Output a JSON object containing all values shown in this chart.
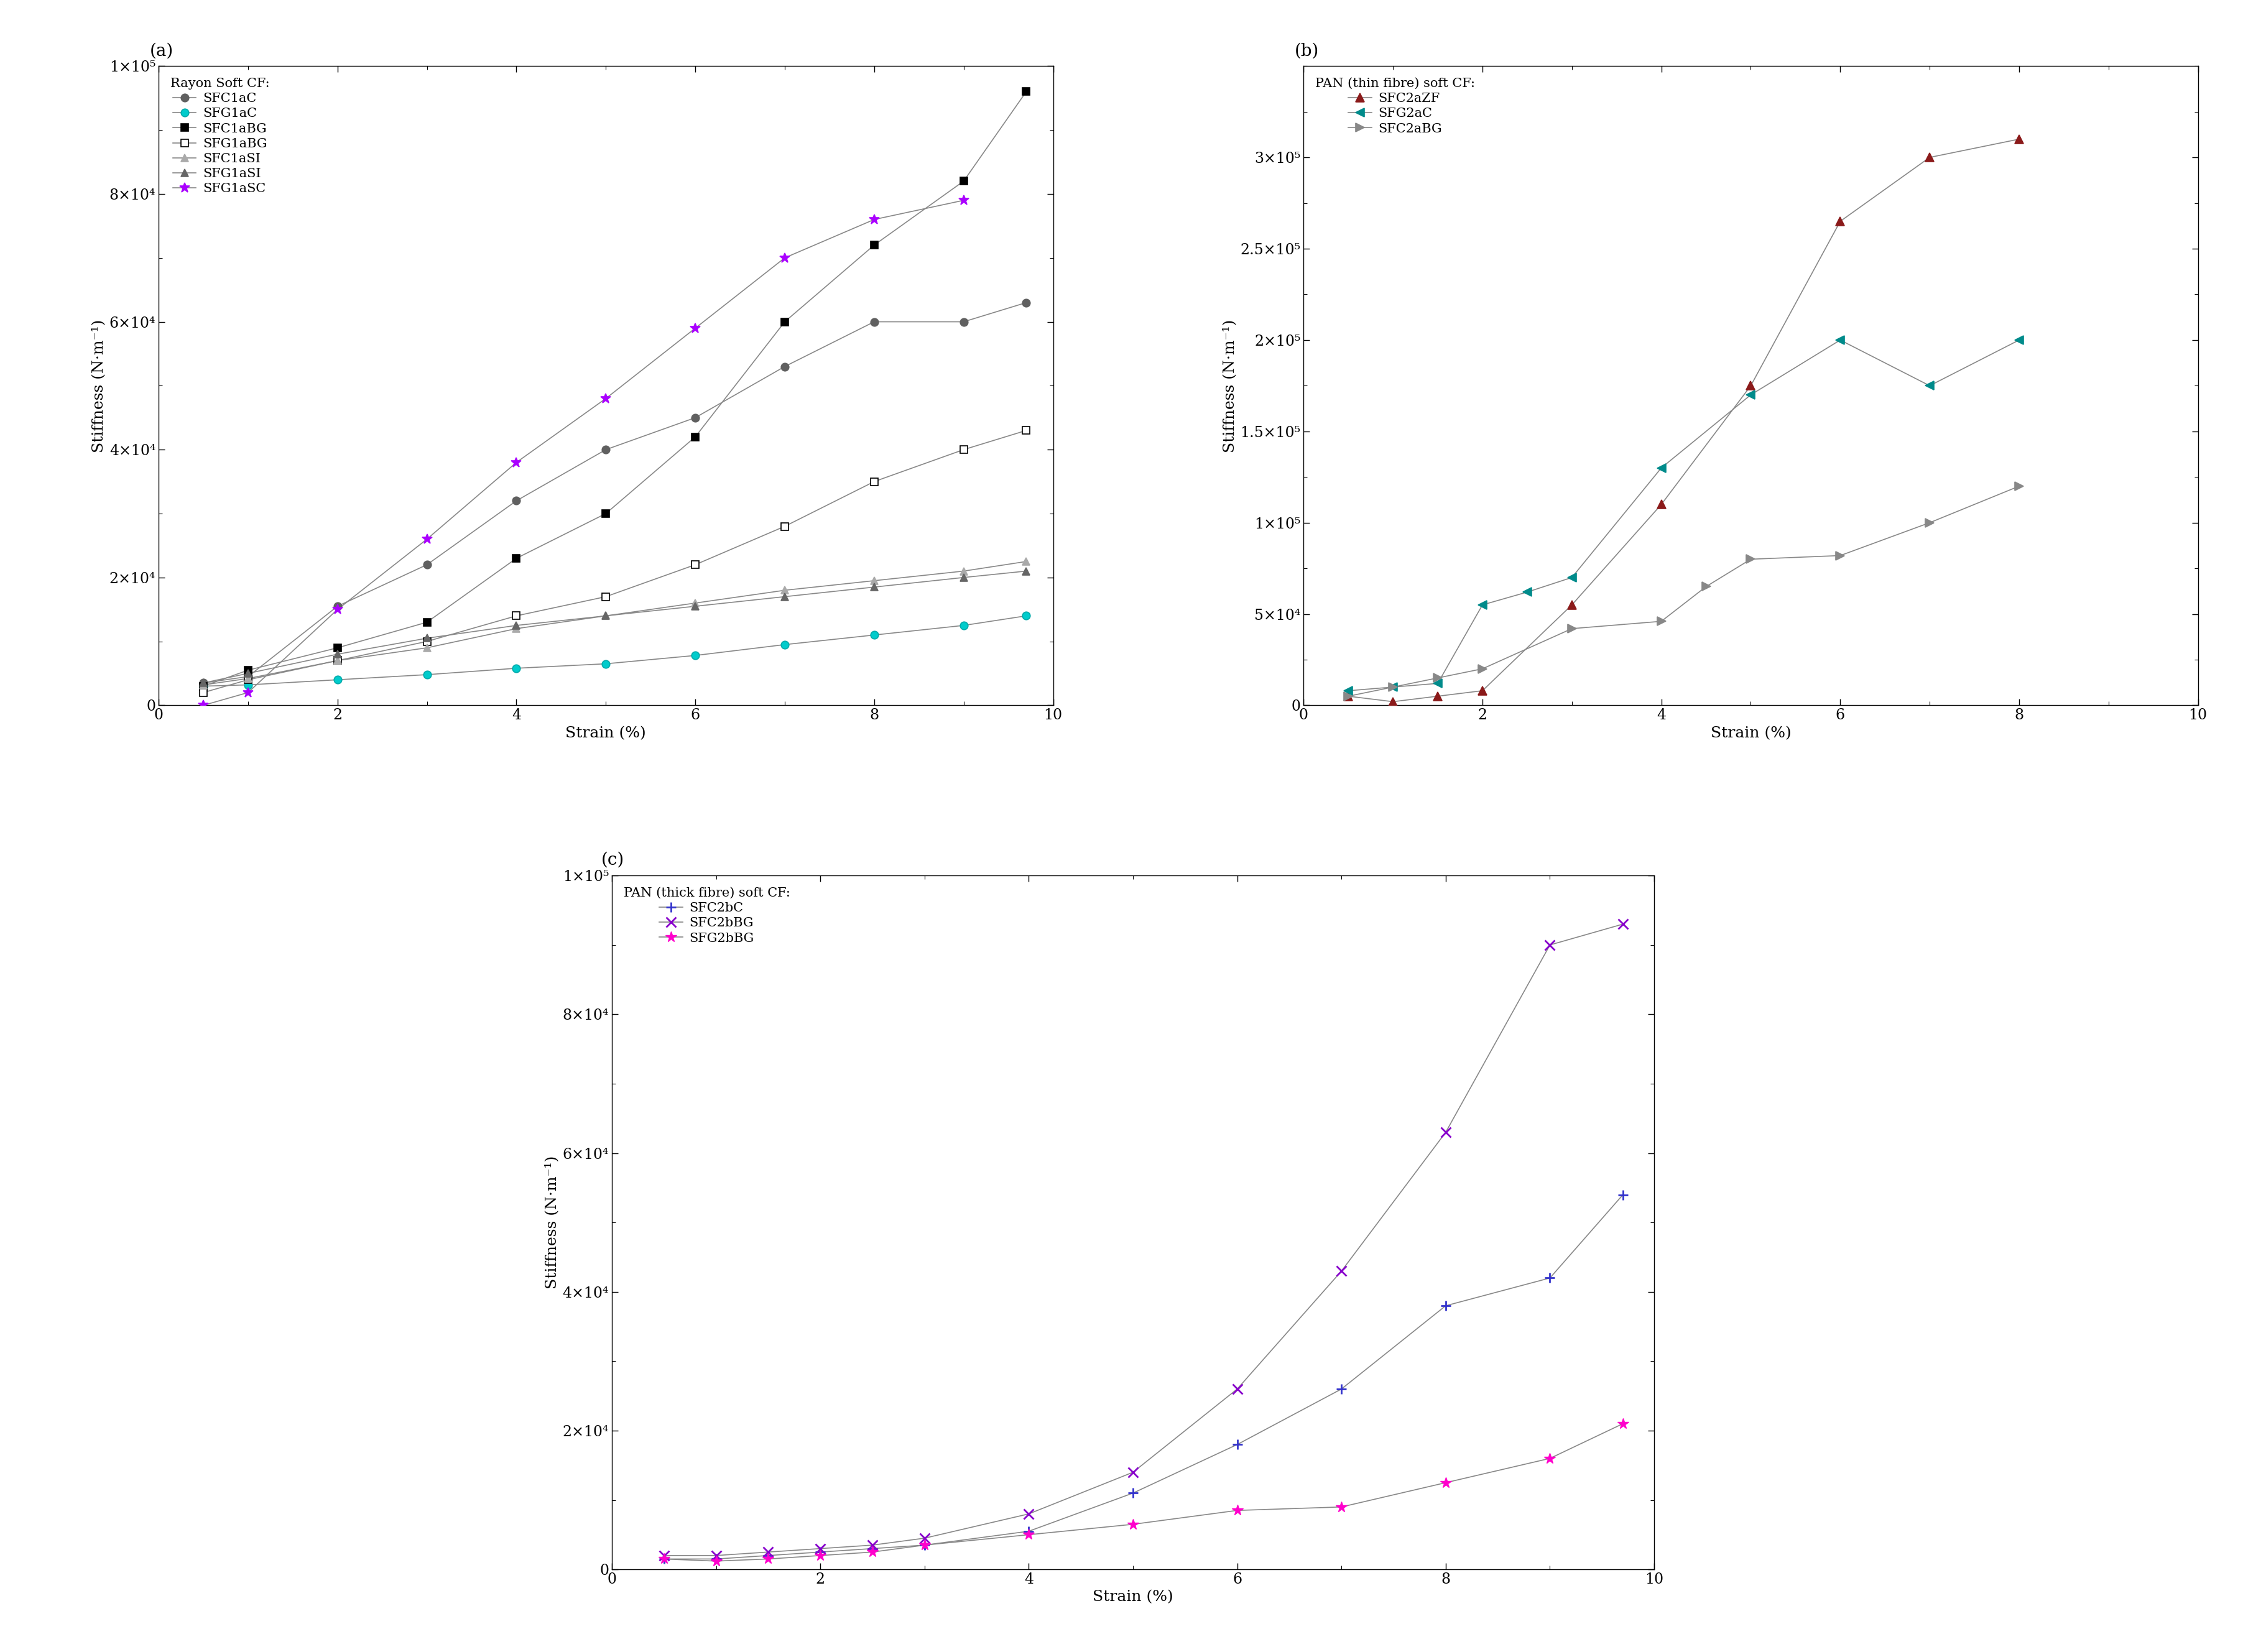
{
  "panel_a": {
    "title": "(a)",
    "legend_title": "Rayon Soft CF:",
    "xlabel": "Strain (%)",
    "ylabel": "Stiffness (N·m⁻¹)",
    "xlim": [
      0,
      10
    ],
    "ylim": [
      0,
      100000
    ],
    "yticks": [
      0,
      20000,
      40000,
      60000,
      80000,
      100000
    ],
    "ytick_labels": [
      "0",
      "2×10⁴",
      "4×10⁴",
      "6×10⁴",
      "8×10⁴",
      "1×10⁵"
    ],
    "series": [
      {
        "label": "SFC1aC",
        "color": "#606060",
        "marker": "o",
        "markersize": 9,
        "x": [
          0.5,
          1.0,
          2.0,
          3.0,
          4.0,
          5.0,
          6.0,
          7.0,
          8.0,
          9.0,
          9.7
        ],
        "y": [
          3500,
          4500,
          15500,
          22000,
          32000,
          40000,
          45000,
          53000,
          60000,
          60000,
          63000
        ],
        "fillstyle": "full",
        "mfc": "#606060",
        "mec": "#606060"
      },
      {
        "label": "SFG1aC",
        "color": "#00CCCC",
        "marker": "o",
        "markersize": 9,
        "x": [
          0.5,
          1.0,
          2.0,
          3.0,
          4.0,
          5.0,
          6.0,
          7.0,
          8.0,
          9.0,
          9.7
        ],
        "y": [
          3000,
          3200,
          4000,
          4800,
          5800,
          6500,
          7800,
          9500,
          11000,
          12500,
          14000
        ],
        "fillstyle": "full",
        "mfc": "#00CCCC",
        "mec": "#00AAAA"
      },
      {
        "label": "SFC1aBG",
        "color": "#000000",
        "marker": "s",
        "markersize": 9,
        "x": [
          0.5,
          1.0,
          2.0,
          3.0,
          4.0,
          5.0,
          6.0,
          7.0,
          8.0,
          9.0,
          9.7
        ],
        "y": [
          3000,
          5500,
          9000,
          13000,
          23000,
          30000,
          42000,
          60000,
          72000,
          82000,
          96000
        ],
        "fillstyle": "full",
        "mfc": "#000000",
        "mec": "#000000"
      },
      {
        "label": "SFG1aBG",
        "color": "#000000",
        "marker": "s",
        "markersize": 9,
        "x": [
          0.5,
          1.0,
          2.0,
          3.0,
          4.0,
          5.0,
          6.0,
          7.0,
          8.0,
          9.0,
          9.7
        ],
        "y": [
          2000,
          4000,
          7000,
          10000,
          14000,
          17000,
          22000,
          28000,
          35000,
          40000,
          43000
        ],
        "fillstyle": "none",
        "mfc": "white",
        "mec": "#000000"
      },
      {
        "label": "SFC1aSI",
        "color": "#aaaaaa",
        "marker": "^",
        "markersize": 9,
        "x": [
          0.5,
          1.0,
          2.0,
          3.0,
          4.0,
          5.0,
          6.0,
          7.0,
          8.0,
          9.0,
          9.7
        ],
        "y": [
          3200,
          4200,
          7000,
          9000,
          12000,
          14000,
          16000,
          18000,
          19500,
          21000,
          22500
        ],
        "fillstyle": "full",
        "mfc": "#aaaaaa",
        "mec": "#aaaaaa"
      },
      {
        "label": "SFG1aSI",
        "color": "#666666",
        "marker": "^",
        "markersize": 9,
        "x": [
          0.5,
          1.0,
          2.0,
          3.0,
          4.0,
          5.0,
          6.0,
          7.0,
          8.0,
          9.0,
          9.7
        ],
        "y": [
          3500,
          5000,
          8000,
          10500,
          12500,
          14000,
          15500,
          17000,
          18500,
          20000,
          21000
        ],
        "fillstyle": "full",
        "mfc": "#666666",
        "mec": "#666666"
      },
      {
        "label": "SFG1aSC",
        "color": "#AA00FF",
        "marker": "*",
        "markersize": 12,
        "x": [
          0.5,
          1.0,
          2.0,
          3.0,
          4.0,
          5.0,
          6.0,
          7.0,
          8.0,
          9.0
        ],
        "y": [
          0,
          2000,
          15000,
          26000,
          38000,
          48000,
          59000,
          70000,
          76000,
          79000
        ],
        "fillstyle": "full",
        "mfc": "#AA00FF",
        "mec": "#AA00FF"
      }
    ]
  },
  "panel_b": {
    "title": "(b)",
    "legend_title": "PAN (thin fibre) soft CF:",
    "xlabel": "Strain (%)",
    "ylabel": "Stiffness (N·m⁻¹)",
    "xlim": [
      0,
      10
    ],
    "ylim": [
      0,
      350000
    ],
    "yticks": [
      0,
      50000,
      100000,
      150000,
      200000,
      250000,
      300000
    ],
    "ytick_labels": [
      "0",
      "5×10⁴",
      "1×10⁵",
      "1.5×10⁵",
      "2×10⁵",
      "2.5×10⁵",
      "3×10⁵"
    ],
    "series": [
      {
        "label": "SFC2aZF",
        "color": "#8B1A1A",
        "marker": "^",
        "markersize": 10,
        "x": [
          0.5,
          1.0,
          1.5,
          2.0,
          3.0,
          4.0,
          5.0,
          6.0,
          7.0,
          8.0
        ],
        "y": [
          5000,
          2000,
          5000,
          8000,
          55000,
          110000,
          175000,
          265000,
          300000,
          310000
        ],
        "fillstyle": "full",
        "mfc": "#8B1A1A",
        "mec": "#8B1A1A"
      },
      {
        "label": "SFG2aC",
        "color": "#008B8B",
        "marker": "<",
        "markersize": 10,
        "x": [
          0.5,
          1.0,
          1.5,
          2.0,
          2.5,
          3.0,
          4.0,
          5.0,
          6.0,
          7.0,
          8.0
        ],
        "y": [
          8000,
          10000,
          12000,
          55000,
          62000,
          70000,
          130000,
          170000,
          200000,
          175000,
          200000
        ],
        "fillstyle": "full",
        "mfc": "#008B8B",
        "mec": "#008B8B"
      },
      {
        "label": "SFC2aBG",
        "color": "#888888",
        "marker": ">",
        "markersize": 10,
        "x": [
          0.5,
          1.0,
          1.5,
          2.0,
          3.0,
          4.0,
          4.5,
          5.0,
          6.0,
          7.0,
          8.0
        ],
        "y": [
          5000,
          10000,
          15000,
          20000,
          42000,
          46000,
          65000,
          80000,
          82000,
          100000,
          120000
        ],
        "fillstyle": "full",
        "mfc": "#888888",
        "mec": "#888888"
      }
    ]
  },
  "panel_c": {
    "title": "(c)",
    "legend_title": "PAN (thick fibre) soft CF:",
    "xlabel": "Strain (%)",
    "ylabel": "Stiffness (N·m⁻¹)",
    "xlim": [
      0,
      10
    ],
    "ylim": [
      0,
      100000
    ],
    "yticks": [
      0,
      20000,
      40000,
      60000,
      80000,
      100000
    ],
    "ytick_labels": [
      "0",
      "2×10⁴",
      "4×10⁴",
      "6×10⁴",
      "8×10⁴",
      "1×10⁵"
    ],
    "series": [
      {
        "label": "SFC2bC",
        "color": "#3333CC",
        "marker": "+",
        "markersize": 11,
        "markeredgewidth": 2.0,
        "x": [
          0.5,
          1.0,
          1.5,
          2.0,
          2.5,
          3.0,
          4.0,
          5.0,
          6.0,
          7.0,
          8.0,
          9.0,
          9.7
        ],
        "y": [
          1500,
          1500,
          2000,
          2500,
          3000,
          3500,
          5500,
          11000,
          18000,
          26000,
          38000,
          42000,
          54000
        ],
        "fillstyle": "full",
        "mfc": "#3333CC",
        "mec": "#3333CC"
      },
      {
        "label": "SFC2bBG",
        "color": "#8800CC",
        "marker": "x",
        "markersize": 11,
        "markeredgewidth": 2.0,
        "x": [
          0.5,
          1.0,
          1.5,
          2.0,
          2.5,
          3.0,
          4.0,
          5.0,
          6.0,
          7.0,
          8.0,
          9.0,
          9.7
        ],
        "y": [
          2000,
          2000,
          2500,
          3000,
          3500,
          4500,
          8000,
          14000,
          26000,
          43000,
          63000,
          90000,
          93000
        ],
        "fillstyle": "full",
        "mfc": "#8800CC",
        "mec": "#8800CC"
      },
      {
        "label": "SFG2bBG",
        "color": "#FF00CC",
        "marker": "*",
        "markersize": 13,
        "markeredgewidth": 1.0,
        "x": [
          0.5,
          1.0,
          1.5,
          2.0,
          2.5,
          3.0,
          4.0,
          5.0,
          6.0,
          7.0,
          8.0,
          9.0,
          9.7
        ],
        "y": [
          1500,
          1200,
          1500,
          2000,
          2500,
          3500,
          5000,
          6500,
          8500,
          9000,
          12500,
          16000,
          21000
        ],
        "fillstyle": "full",
        "mfc": "#FF00CC",
        "mec": "#FF00CC"
      }
    ]
  },
  "line_color": "#888888",
  "line_width": 1.2,
  "tick_labelsize": 17,
  "axis_labelsize": 18,
  "legend_fontsize": 15,
  "legend_title_fontsize": 15,
  "panel_label_fontsize": 20
}
